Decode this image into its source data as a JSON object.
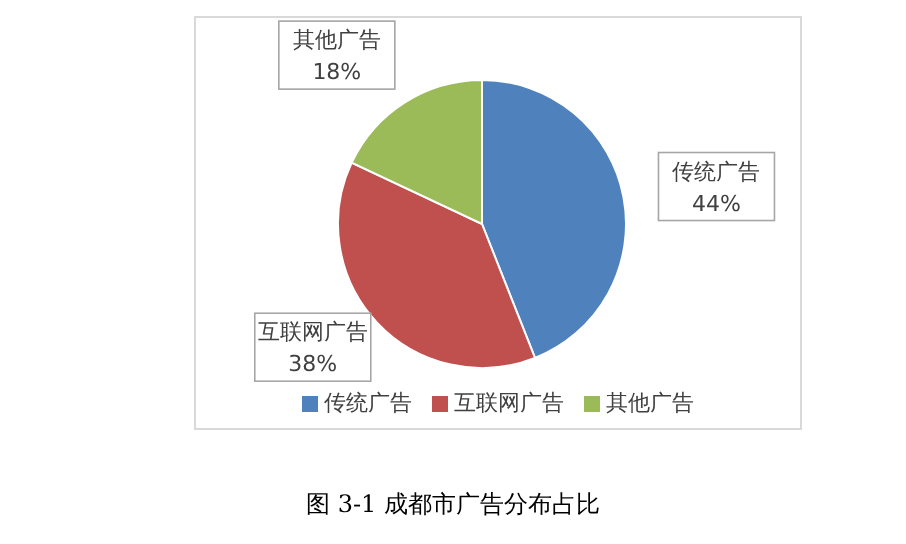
{
  "chart_data": {
    "type": "pie",
    "categories": [
      "传统广告",
      "互联网广告",
      "其他广告"
    ],
    "values": [
      44,
      38,
      18
    ],
    "colors": [
      "#4f81bd",
      "#c0504d",
      "#9bbb59"
    ],
    "value_labels": [
      "44%",
      "38%",
      "18%"
    ],
    "legend": "bottom",
    "annotations": [
      "图 3-1 成都市广告分布占比"
    ]
  }
}
